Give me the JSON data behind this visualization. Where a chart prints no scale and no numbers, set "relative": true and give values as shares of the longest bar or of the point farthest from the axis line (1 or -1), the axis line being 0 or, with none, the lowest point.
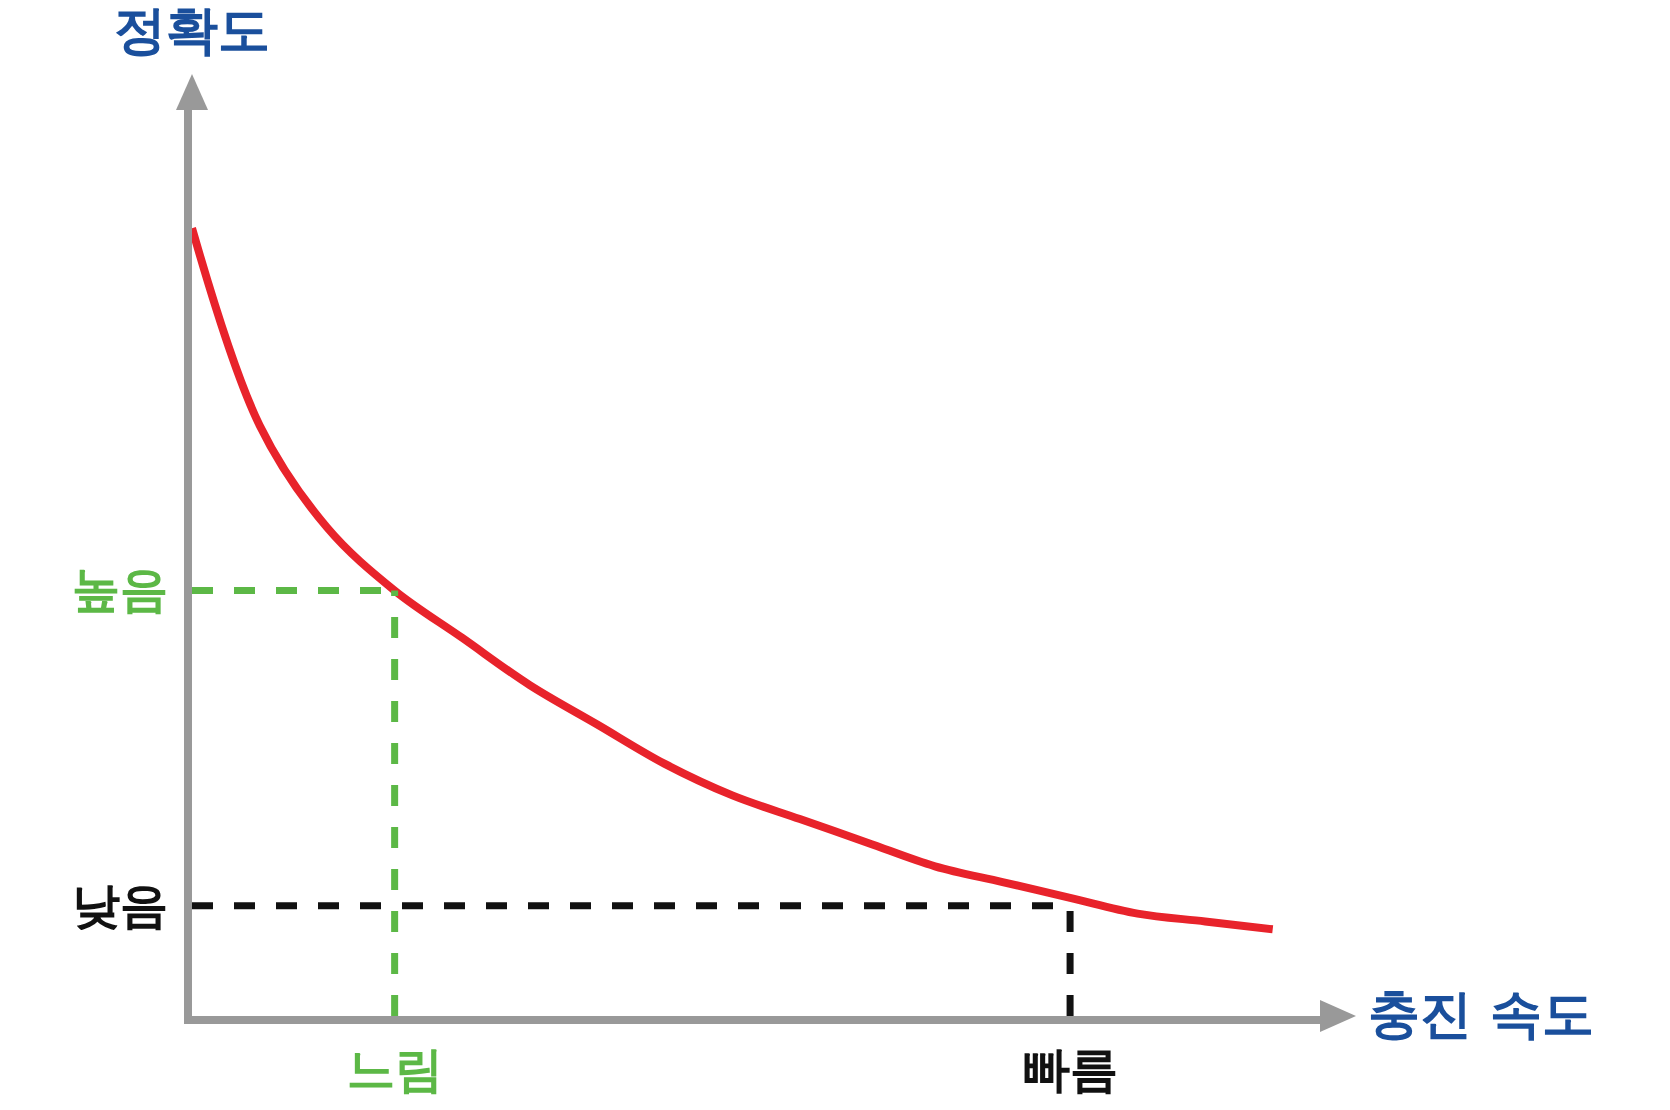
{
  "chart_data": {
    "type": "line",
    "xlabel": "충진 속도",
    "ylabel": "정확도",
    "relative": true,
    "categories": [
      null,
      null,
      null,
      "느림",
      null,
      null,
      null,
      null,
      null,
      null,
      null,
      null,
      null,
      "빠름",
      null,
      null,
      null
    ],
    "annotations": [
      "높음",
      "낮음"
    ],
    "grid": false,
    "marker": "none",
    "series": [
      {
        "color": "#e8232b",
        "line_style": "solid",
        "values": [
          1.0,
          0.75,
          0.62,
          0.54,
          0.48,
          0.42,
          0.37,
          0.32,
          0.28,
          0.25,
          0.22,
          0.19,
          0.17,
          0.15,
          0.13,
          0.12,
          0.11
        ]
      },
      {
        "color": "#5cb846",
        "line_style": "dashed",
        "values": [
          0.54,
          0.54,
          0.54,
          0.54,
          null,
          null,
          null,
          null,
          null,
          null,
          null,
          null,
          null,
          null,
          null,
          null,
          null
        ]
      },
      {
        "color": "#111111",
        "line_style": "dashed",
        "values": [
          0.14,
          0.14,
          0.14,
          0.14,
          0.14,
          0.14,
          0.14,
          0.14,
          0.14,
          0.14,
          0.14,
          0.14,
          0.14,
          0.14,
          null,
          null,
          null
        ]
      }
    ],
    "ref_lines": [
      {
        "axis": "x",
        "value": "느림",
        "color": "#5cb846",
        "line_style": "dashed"
      },
      {
        "axis": "x",
        "value": "빠름",
        "color": "#111111",
        "line_style": "dashed"
      }
    ]
  }
}
